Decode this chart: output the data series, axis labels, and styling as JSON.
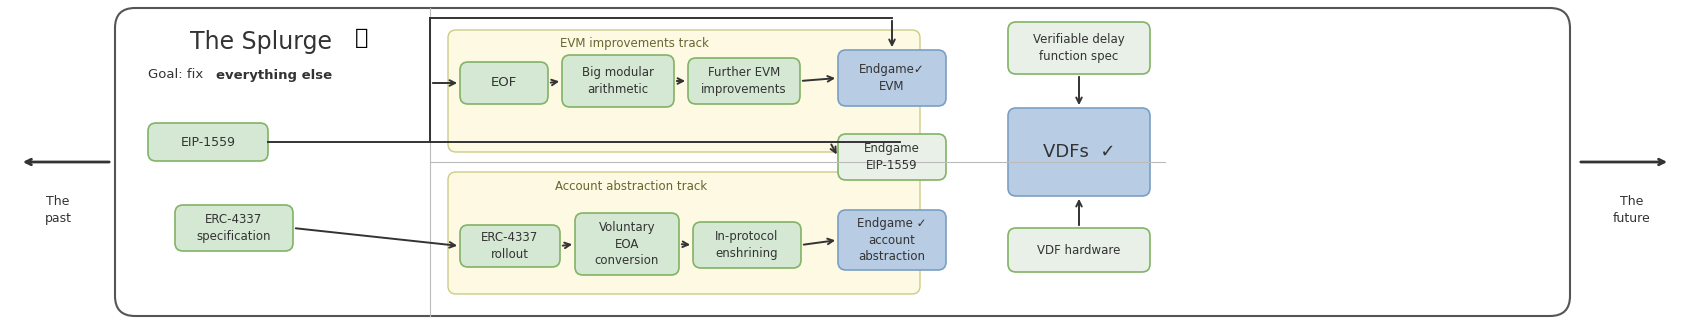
{
  "bg_color": "#ffffff",
  "outer_box_color": "#555555",
  "divider_color": "#bbbbbb",
  "track_bg": "#fdf9e3",
  "track_border": "#cccc88",
  "node_green_bg": "#d5e8d4",
  "node_green_border": "#82b366",
  "node_blue_bg": "#b8cce4",
  "node_blue_border": "#7a9fc4",
  "node_light_bg": "#e8f0e8",
  "node_light_border": "#82b366",
  "arrow_color": "#333333",
  "text_color": "#333333",
  "title": "The Splurge",
  "goal_prefix": "Goal: fix ",
  "goal_bold": "everything else",
  "eip1559": "EIP-1559",
  "erc_spec": "ERC-4337\nspecification",
  "eof": "EOF",
  "big_mod": "Big modular\narithmetic",
  "further_evm": "Further EVM\nimprovements",
  "erc_rollout": "ERC-4337\nrollout",
  "vol_eoa": "Voluntary\nEOA\nconversion",
  "in_protocol": "In-protocol\nenshrining",
  "endgame_evm": "Endgame✓\nEVM",
  "endgame_eip": "Endgame\nEIP-1559",
  "endgame_acct": "Endgame ✓\naccount\nabstraction",
  "vdf_spec": "Verifiable delay\nfunction spec",
  "vdfs": "VDFs  ✓",
  "vdf_hw": "VDF hardware",
  "evm_track": "EVM improvements track",
  "acct_track": "Account abstraction track",
  "the_past": "The\npast",
  "the_future": "The\nfuture"
}
